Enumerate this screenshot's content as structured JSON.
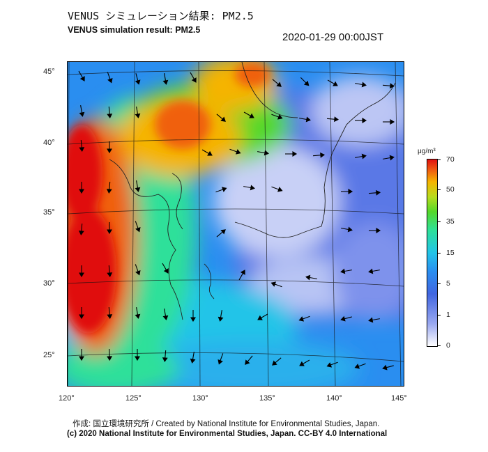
{
  "header": {
    "title_jp": "VENUS シミュレーション結果: PM2.5",
    "title_en": "VENUS simulation result: PM2.5",
    "timestamp": "2020-01-29 00:00JST"
  },
  "map": {
    "lat_labels": [
      "45°",
      "40°",
      "35°",
      "30°",
      "25°"
    ],
    "lon_labels": [
      "120°",
      "125°",
      "130°",
      "135°",
      "140°",
      "145°"
    ],
    "colors": {
      "very_high": "#e01010",
      "high": "#f06010",
      "moderate": "#55d82a",
      "low": "#22c4e8",
      "lower": "#2a8ef0",
      "lowest": "#ffffff"
    }
  },
  "colorbar": {
    "unit": "μg/m³",
    "ticks": [
      "70",
      "50",
      "35",
      "15",
      "5",
      "1",
      "0"
    ]
  },
  "footer": {
    "credit": "作成: 国立環境研究所 / Created by National Institute for Environmental Studies, Japan.",
    "license": "(c) 2020 National Institute for Environmental Studies, Japan. CC-BY 4.0 International"
  }
}
